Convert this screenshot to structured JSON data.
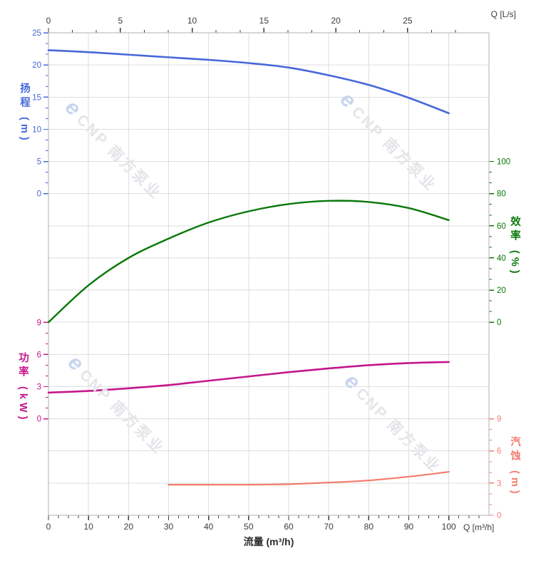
{
  "labels": {
    "top_corner": "Q [L/s]",
    "bottom_corner": "Q [m³/h]",
    "bottom_title": "流量 (m³/h)",
    "head_title": "扬程 (m)",
    "efficiency_title": "效率 (%)",
    "power_title": "功率 (kW)",
    "npsh_title": "汽蚀 (m)"
  },
  "watermark": {
    "logo_letter": "e",
    "brand": "CNP 南方泵业"
  },
  "colors": {
    "head": "#4668d9",
    "efficiency": "#087808",
    "power": "#c5168c",
    "npsh": "#f47c6e",
    "grid": "#dedede",
    "border": "#b2b2b2",
    "tick_text": "#3c3c3c"
  },
  "chart_data": {
    "type": "line",
    "title": "",
    "x_axes": {
      "bottom": {
        "label": "流量 (m³/h)",
        "unit": "m³/h",
        "ticks": [
          0,
          10,
          20,
          30,
          40,
          50,
          60,
          70,
          80,
          90,
          100
        ],
        "range": [
          0,
          110
        ],
        "minor_per_interval": 3
      },
      "top": {
        "label": "Q [L/s]",
        "unit": "L/s",
        "ticks": [
          0,
          5,
          10,
          15,
          20,
          25
        ],
        "range": [
          0,
          30.7
        ],
        "minor_per_interval": 2
      }
    },
    "y_axes": {
      "head": {
        "label": "扬程 (m)",
        "side": "left",
        "ticks": [
          25,
          20,
          15,
          10,
          5,
          0
        ],
        "range": [
          0,
          25
        ],
        "minor_per_interval": 2
      },
      "efficiency": {
        "label": "效率 (%)",
        "side": "right",
        "ticks": [
          100,
          80,
          60,
          40,
          20,
          0
        ],
        "range": [
          0,
          100
        ],
        "minor_per_interval": 2
      },
      "power": {
        "label": "功率 (kW)",
        "side": "left",
        "ticks": [
          9,
          6,
          3,
          0
        ],
        "range": [
          0,
          9
        ],
        "minor_per_interval": 2
      },
      "npsh": {
        "label": "汽蚀 (m)",
        "side": "right",
        "ticks": [
          9,
          6,
          3,
          0
        ],
        "range": [
          0,
          9
        ],
        "minor_per_interval": 2
      }
    },
    "grid": true,
    "legend": false,
    "series": [
      {
        "name": "head",
        "y_axis": "head",
        "x": [
          0,
          10,
          20,
          30,
          40,
          50,
          60,
          70,
          80,
          90,
          100
        ],
        "y": [
          22.3,
          22.0,
          21.6,
          21.2,
          20.8,
          20.3,
          19.6,
          18.4,
          16.9,
          14.9,
          12.5
        ]
      },
      {
        "name": "efficiency",
        "y_axis": "efficiency",
        "x": [
          0,
          10,
          20,
          30,
          40,
          50,
          60,
          70,
          80,
          90,
          100
        ],
        "y": [
          0,
          23,
          40,
          52,
          62,
          69,
          73.5,
          75.5,
          74.8,
          71,
          63.5
        ]
      },
      {
        "name": "power",
        "y_axis": "power",
        "x": [
          0,
          10,
          20,
          30,
          40,
          50,
          60,
          70,
          80,
          90,
          100
        ],
        "y": [
          2.45,
          2.6,
          2.85,
          3.15,
          3.55,
          3.95,
          4.35,
          4.7,
          5.0,
          5.2,
          5.3
        ]
      },
      {
        "name": "npsh",
        "y_axis": "npsh",
        "x": [
          30,
          40,
          50,
          60,
          70,
          80,
          90,
          100
        ],
        "y": [
          2.85,
          2.85,
          2.85,
          2.9,
          3.05,
          3.25,
          3.6,
          4.05
        ]
      }
    ]
  }
}
